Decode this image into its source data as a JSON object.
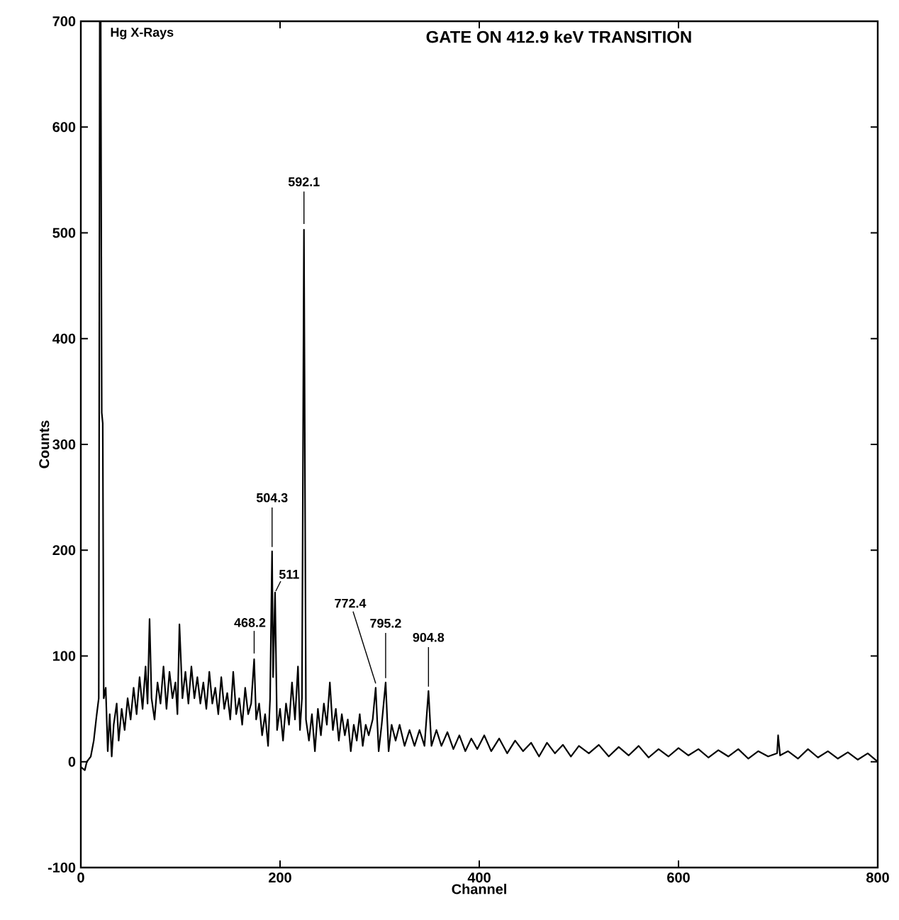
{
  "chart_data": {
    "type": "line",
    "title": "GATE ON 412.9 keV TRANSITION",
    "xlabel": "Channel",
    "ylabel": "Counts",
    "xlim": [
      0,
      800
    ],
    "ylim": [
      -100,
      700
    ],
    "xticks": [
      0,
      200,
      400,
      600,
      800
    ],
    "yticks": [
      -100,
      0,
      100,
      200,
      300,
      400,
      500,
      600,
      700
    ],
    "series": [
      {
        "color": "#000000",
        "x": [
          0,
          4,
          6,
          10,
          13,
          16,
          18,
          19,
          20,
          21,
          22,
          23,
          25,
          27,
          29,
          31,
          33,
          36,
          38,
          41,
          44,
          47,
          50,
          53,
          56,
          59,
          62,
          65,
          67,
          69,
          71,
          74,
          77,
          80,
          83,
          86,
          89,
          92,
          95,
          97,
          99,
          102,
          105,
          108,
          111,
          114,
          117,
          120,
          123,
          126,
          129,
          132,
          135,
          138,
          141,
          144,
          147,
          150,
          153,
          156,
          159,
          162,
          165,
          168,
          171,
          174,
          176,
          179,
          182,
          185,
          188,
          190,
          192,
          193,
          195,
          197,
          200,
          203,
          206,
          209,
          212,
          215,
          218,
          220,
          222,
          224,
          226,
          229,
          232,
          235,
          238,
          241,
          244,
          247,
          250,
          253,
          256,
          259,
          262,
          265,
          268,
          271,
          274,
          277,
          280,
          283,
          286,
          289,
          293,
          296,
          299,
          302,
          306,
          309,
          312,
          316,
          320,
          325,
          330,
          335,
          340,
          345,
          349,
          352,
          357,
          362,
          368,
          374,
          380,
          386,
          392,
          398,
          405,
          412,
          420,
          428,
          436,
          444,
          452,
          460,
          468,
          476,
          484,
          492,
          500,
          510,
          520,
          530,
          540,
          550,
          560,
          570,
          580,
          590,
          600,
          610,
          620,
          630,
          640,
          650,
          660,
          670,
          680,
          690,
          699,
          700,
          702,
          710,
          720,
          730,
          740,
          750,
          760,
          770,
          780,
          790,
          800
        ],
        "values": [
          -5,
          -8,
          0,
          5,
          20,
          45,
          60,
          700,
          700,
          330,
          320,
          60,
          70,
          10,
          45,
          5,
          35,
          55,
          20,
          50,
          30,
          60,
          40,
          70,
          45,
          80,
          50,
          90,
          55,
          135,
          60,
          40,
          75,
          55,
          90,
          50,
          85,
          60,
          75,
          45,
          130,
          60,
          85,
          55,
          90,
          60,
          80,
          55,
          75,
          50,
          85,
          55,
          70,
          45,
          80,
          50,
          65,
          40,
          85,
          45,
          60,
          35,
          70,
          45,
          55,
          97,
          40,
          55,
          25,
          45,
          15,
          60,
          199,
          80,
          160,
          30,
          50,
          20,
          55,
          35,
          75,
          40,
          90,
          30,
          60,
          503,
          40,
          20,
          45,
          10,
          50,
          25,
          55,
          35,
          75,
          30,
          50,
          20,
          45,
          25,
          40,
          10,
          35,
          20,
          45,
          15,
          35,
          25,
          40,
          70,
          10,
          35,
          75,
          10,
          35,
          20,
          35,
          15,
          30,
          15,
          30,
          15,
          67,
          15,
          30,
          15,
          28,
          12,
          25,
          10,
          22,
          12,
          25,
          10,
          22,
          8,
          20,
          10,
          18,
          5,
          18,
          8,
          16,
          5,
          15,
          8,
          16,
          5,
          14,
          6,
          15,
          4,
          12,
          5,
          13,
          6,
          12,
          4,
          11,
          5,
          12,
          3,
          10,
          5,
          8,
          25,
          6,
          10,
          3,
          12,
          4,
          10,
          3,
          9,
          2,
          8,
          0
        ]
      }
    ],
    "annotations": [
      {
        "text": "Hg X-Rays",
        "x": 20,
        "y": 700
      },
      {
        "text": "468.2",
        "x": 174,
        "y": 97
      },
      {
        "text": "504.3",
        "x": 192,
        "y": 199
      },
      {
        "text": "511",
        "x": 195,
        "y": 160
      },
      {
        "text": "592.1",
        "x": 224,
        "y": 503
      },
      {
        "text": "772.4",
        "x": 296,
        "y": 70
      },
      {
        "text": "795.2",
        "x": 306,
        "y": 75
      },
      {
        "text": "904.8",
        "x": 349,
        "y": 67
      }
    ]
  }
}
